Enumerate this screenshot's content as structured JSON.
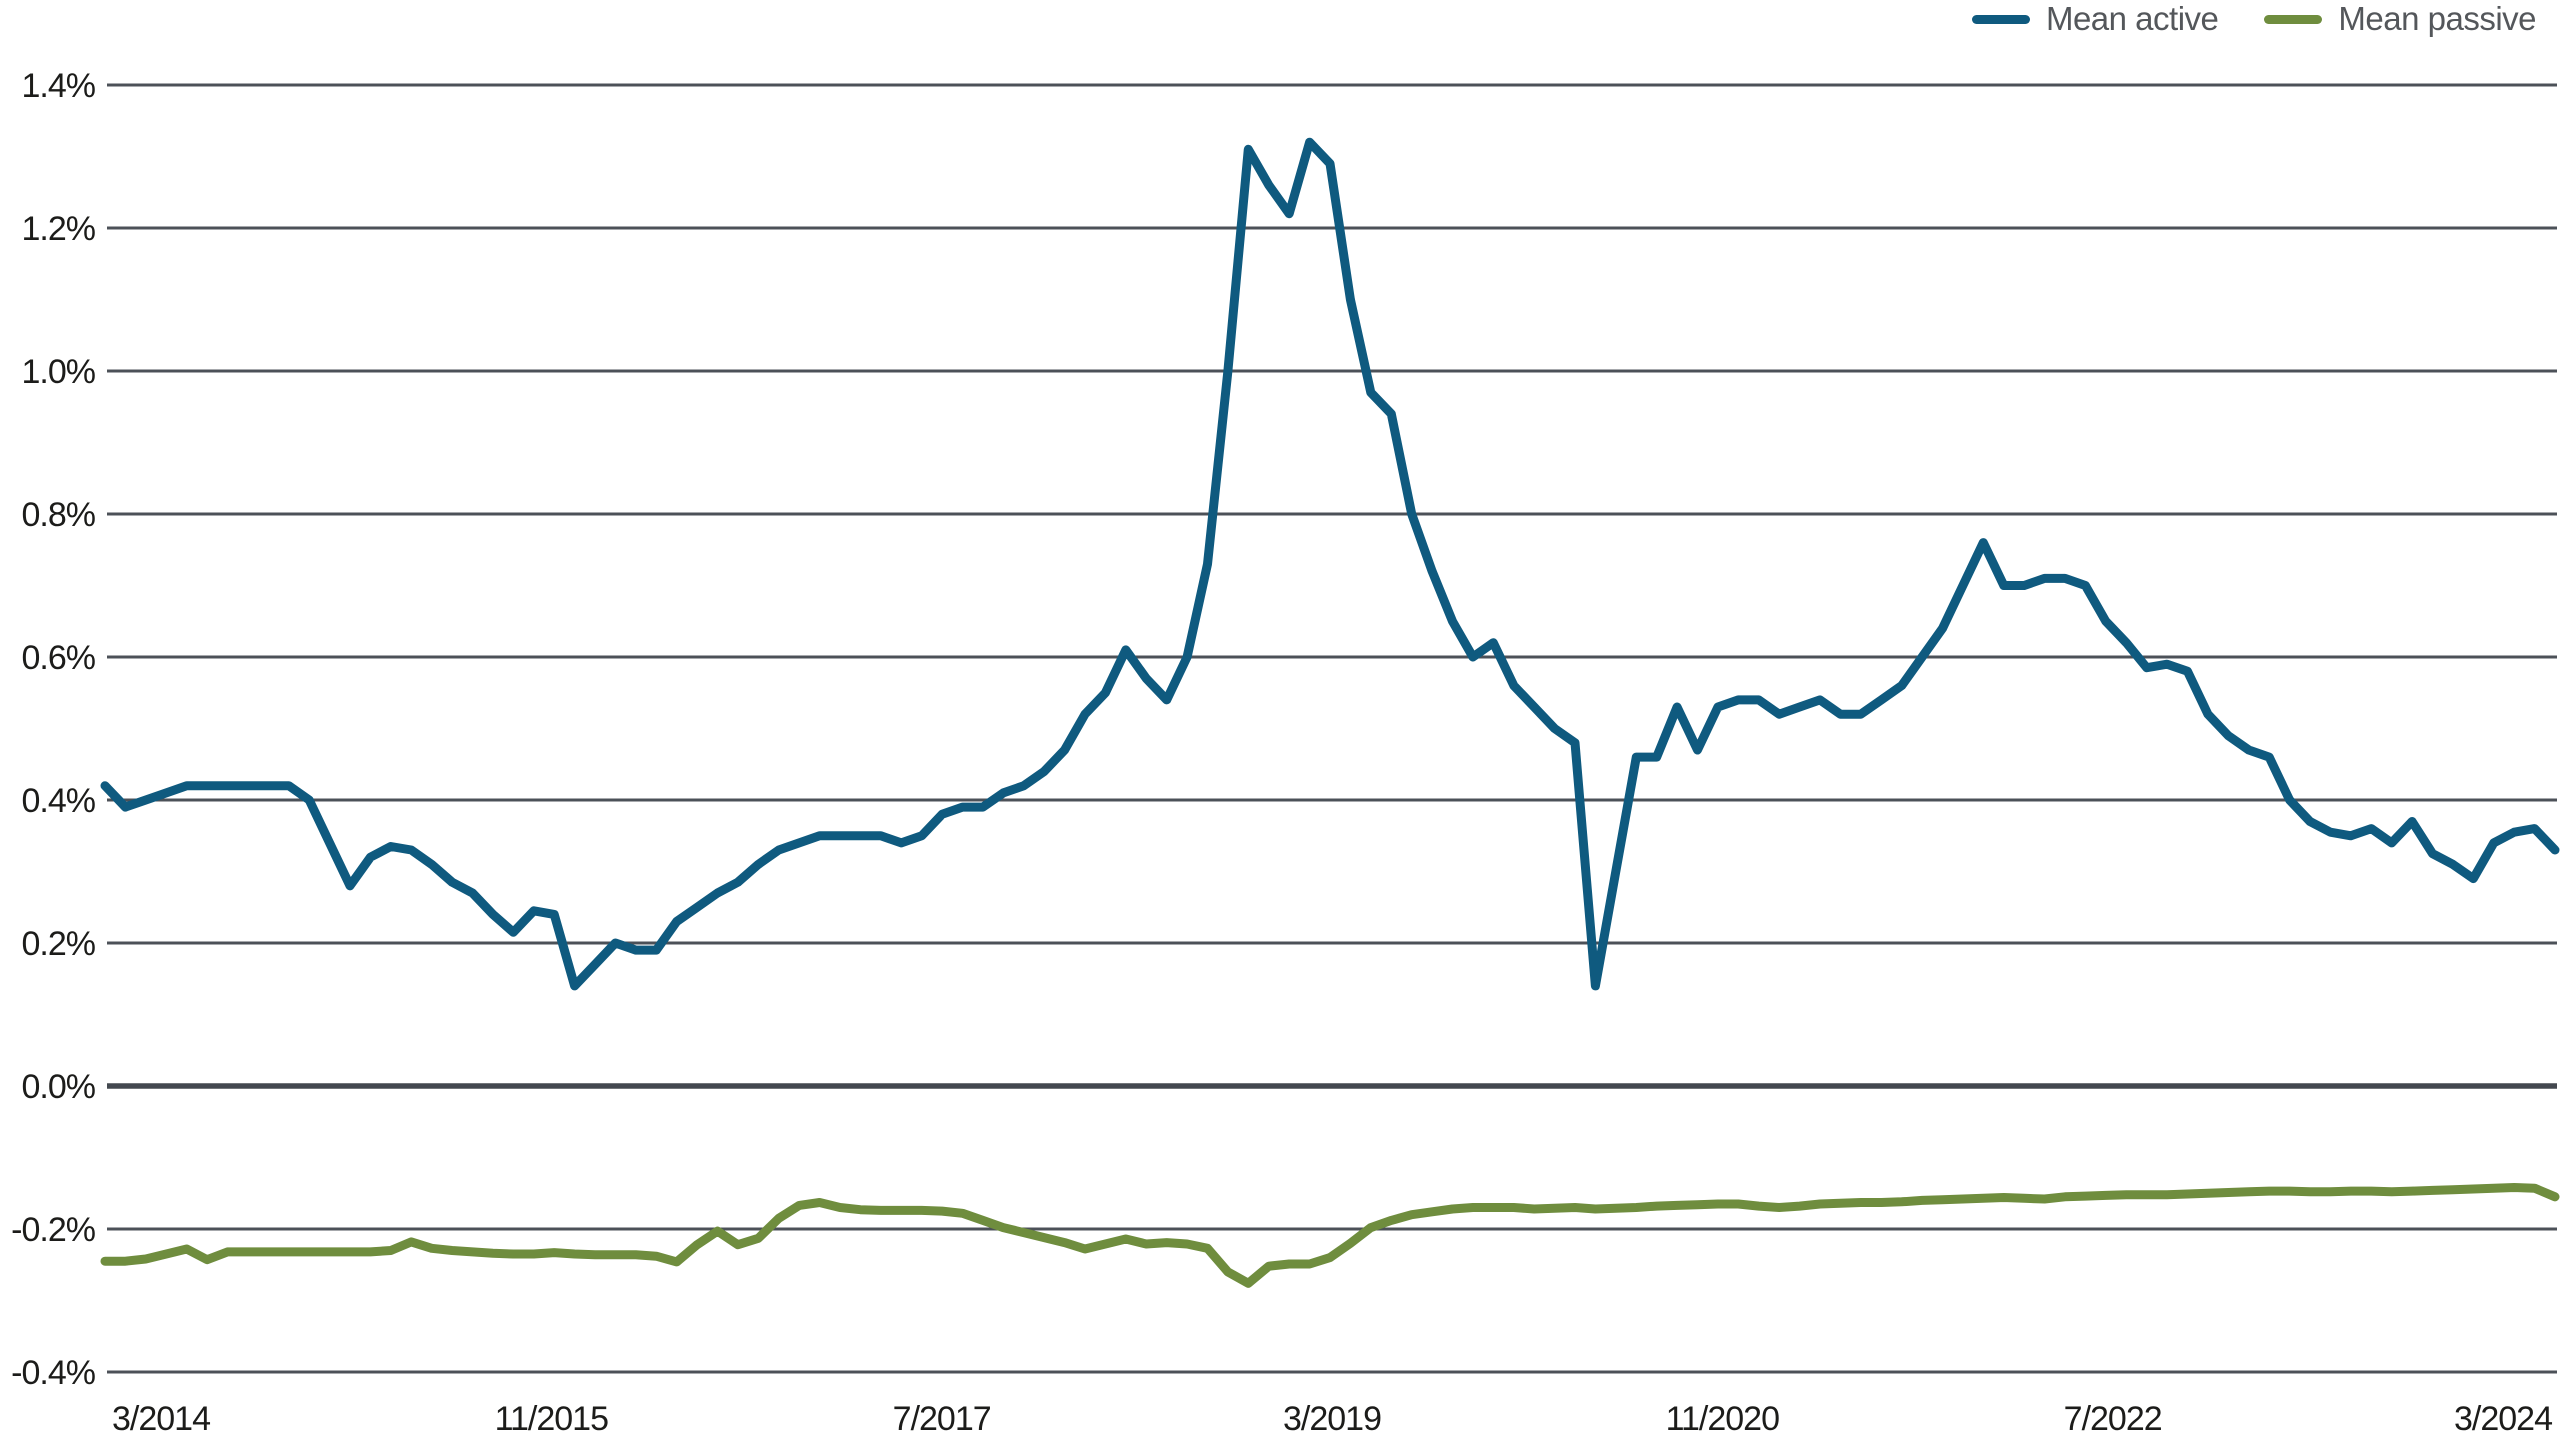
{
  "legend": {
    "items": [
      {
        "label": "Mean active",
        "color": "#0F5A7F"
      },
      {
        "label": "Mean passive",
        "color": "#6F8D3E"
      }
    ]
  },
  "colors": {
    "gridline": "#4C5158",
    "zero_line": "#43484F",
    "tick_text": "#1C1C1A",
    "legend_text": "#54575B",
    "background": "#FFFFFF"
  },
  "chart_data": {
    "type": "line",
    "title": "",
    "x_start": "3/2014",
    "x_end": "3/2024",
    "x_frequency": "monthly",
    "x_tick_months": [
      0,
      20,
      40,
      60,
      80,
      100,
      120
    ],
    "x_tick_labels": [
      "3/2014",
      "11/2015",
      "7/2017",
      "3/2019",
      "11/2020",
      "7/2022",
      "3/2024"
    ],
    "y_axis": {
      "min": -0.4,
      "max": 1.4,
      "step": 0.2,
      "format": "percent",
      "tick_labels": [
        "1.4%",
        "1.2%",
        "1.0%",
        "0.8%",
        "0.6%",
        "0.4%",
        "0.2%",
        "0.0%",
        "-0.2%",
        "-0.4%"
      ]
    },
    "grid": "horizontal-only",
    "legend_position": "top-right",
    "series": [
      {
        "name": "Mean active",
        "color": "#0F5A7F",
        "unit": "%",
        "values": [
          0.42,
          0.39,
          0.4,
          0.41,
          0.42,
          0.42,
          0.42,
          0.42,
          0.42,
          0.42,
          0.4,
          0.34,
          0.28,
          0.32,
          0.335,
          0.33,
          0.31,
          0.285,
          0.27,
          0.24,
          0.215,
          0.245,
          0.24,
          0.14,
          0.17,
          0.2,
          0.19,
          0.19,
          0.23,
          0.25,
          0.27,
          0.285,
          0.31,
          0.33,
          0.34,
          0.35,
          0.35,
          0.35,
          0.35,
          0.34,
          0.35,
          0.38,
          0.39,
          0.39,
          0.41,
          0.42,
          0.44,
          0.47,
          0.52,
          0.55,
          0.61,
          0.57,
          0.54,
          0.6,
          0.73,
          1.0,
          1.31,
          1.26,
          1.22,
          1.32,
          1.29,
          1.1,
          0.97,
          0.94,
          0.8,
          0.72,
          0.65,
          0.6,
          0.62,
          0.56,
          0.53,
          0.5,
          0.48,
          0.14,
          0.3,
          0.46,
          0.46,
          0.53,
          0.47,
          0.53,
          0.54,
          0.54,
          0.52,
          0.53,
          0.54,
          0.52,
          0.52,
          0.54,
          0.56,
          0.6,
          0.64,
          0.7,
          0.76,
          0.7,
          0.7,
          0.71,
          0.71,
          0.7,
          0.65,
          0.62,
          0.585,
          0.59,
          0.58,
          0.52,
          0.49,
          0.47,
          0.46,
          0.4,
          0.37,
          0.355,
          0.35,
          0.36,
          0.34,
          0.37,
          0.325,
          0.31,
          0.29,
          0.34,
          0.355,
          0.36,
          0.33
        ]
      },
      {
        "name": "Mean passive",
        "color": "#6F8D3E",
        "unit": "%",
        "values": [
          -0.245,
          -0.245,
          -0.242,
          -0.235,
          -0.228,
          -0.243,
          -0.232,
          -0.232,
          -0.232,
          -0.232,
          -0.232,
          -0.232,
          -0.232,
          -0.232,
          -0.23,
          -0.218,
          -0.227,
          -0.23,
          -0.232,
          -0.234,
          -0.235,
          -0.235,
          -0.233,
          -0.235,
          -0.236,
          -0.236,
          -0.236,
          -0.238,
          -0.246,
          -0.222,
          -0.203,
          -0.222,
          -0.213,
          -0.185,
          -0.167,
          -0.163,
          -0.17,
          -0.173,
          -0.174,
          -0.174,
          -0.174,
          -0.175,
          -0.178,
          -0.188,
          -0.198,
          -0.205,
          -0.212,
          -0.219,
          -0.228,
          -0.221,
          -0.214,
          -0.221,
          -0.219,
          -0.221,
          -0.227,
          -0.26,
          -0.276,
          -0.252,
          -0.249,
          -0.249,
          -0.24,
          -0.22,
          -0.198,
          -0.188,
          -0.18,
          -0.176,
          -0.172,
          -0.17,
          -0.17,
          -0.17,
          -0.172,
          -0.171,
          -0.17,
          -0.172,
          -0.171,
          -0.17,
          -0.168,
          -0.167,
          -0.166,
          -0.165,
          -0.165,
          -0.168,
          -0.17,
          -0.168,
          -0.165,
          -0.164,
          -0.163,
          -0.163,
          -0.162,
          -0.16,
          -0.159,
          -0.158,
          -0.157,
          -0.156,
          -0.157,
          -0.158,
          -0.155,
          -0.154,
          -0.153,
          -0.152,
          -0.152,
          -0.152,
          -0.151,
          -0.15,
          -0.149,
          -0.148,
          -0.147,
          -0.147,
          -0.148,
          -0.148,
          -0.147,
          -0.147,
          -0.148,
          -0.147,
          -0.146,
          -0.145,
          -0.144,
          -0.143,
          -0.142,
          -0.143,
          -0.155
        ]
      }
    ]
  }
}
